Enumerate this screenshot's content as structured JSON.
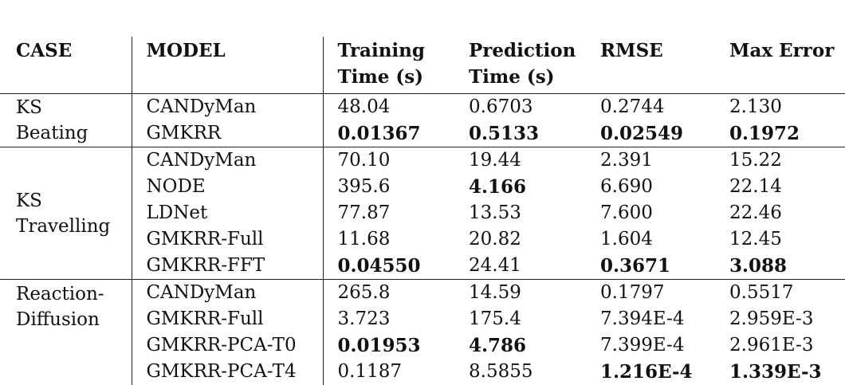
{
  "headers": {
    "case": "CASE",
    "model": "MODEL",
    "training_line1": "Training",
    "training_line2": "Time (s)",
    "prediction_line1": "Prediction",
    "prediction_line2": "Time (s)",
    "rmse": "RMSE",
    "max_error": "Max Error"
  },
  "groups": [
    {
      "case_line1": "KS",
      "case_line2": "Beating",
      "rows": [
        {
          "model": "CANDyMan",
          "training": "48.04",
          "prediction": "0.6703",
          "rmse": "0.2744",
          "max_error": "2.130"
        },
        {
          "model": "GMKRR",
          "training": "0.01367",
          "prediction": "0.5133",
          "rmse": "0.02549",
          "max_error": "0.1972"
        }
      ]
    },
    {
      "case_line1": "KS",
      "case_line2": "Travelling",
      "rows": [
        {
          "model": "CANDyMan",
          "training": "70.10",
          "prediction": "19.44",
          "rmse": "2.391",
          "max_error": "15.22"
        },
        {
          "model": "NODE",
          "training": "395.6",
          "prediction": "4.166",
          "rmse": "6.690",
          "max_error": "22.14"
        },
        {
          "model": "LDNet",
          "training": "77.87",
          "prediction": "13.53",
          "rmse": "7.600",
          "max_error": "22.46"
        },
        {
          "model": "GMKRR-Full",
          "training": "11.68",
          "prediction": "20.82",
          "rmse": "1.604",
          "max_error": "12.45"
        },
        {
          "model": "GMKRR-FFT",
          "training": "0.04550",
          "prediction": "24.41",
          "rmse": "0.3671",
          "max_error": "3.088"
        }
      ]
    },
    {
      "case_line1": "Reaction-",
      "case_line2": "Diffusion",
      "rows": [
        {
          "model": "CANDyMan",
          "training": "265.8",
          "prediction": "14.59",
          "rmse": "0.1797",
          "max_error": "0.5517"
        },
        {
          "model": "GMKRR-Full",
          "training": "3.723",
          "prediction": "175.4",
          "rmse": "7.394E-4",
          "max_error": "2.959E-3"
        },
        {
          "model": "GMKRR-PCA-T0",
          "training": "0.01953",
          "prediction": "4.786",
          "rmse": "7.399E-4",
          "max_error": "2.961E-3"
        },
        {
          "model": "GMKRR-PCA-T4",
          "training": "0.1187",
          "prediction": "8.5855",
          "rmse": "1.216E-4",
          "max_error": "1.339E-3"
        }
      ]
    }
  ]
}
